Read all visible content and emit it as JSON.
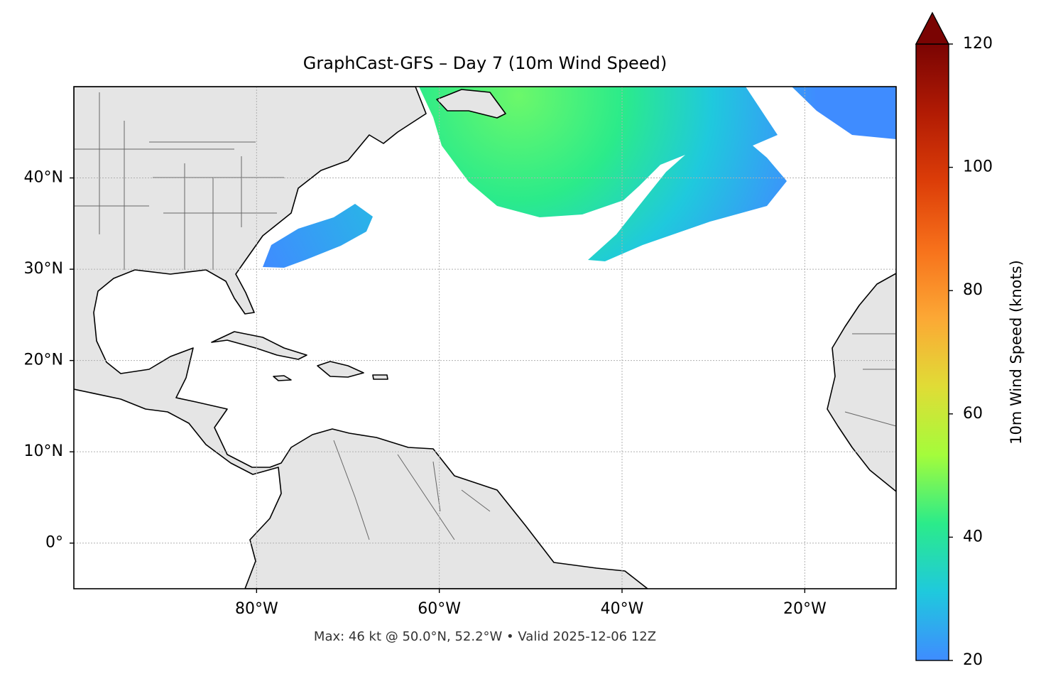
{
  "chart_data": {
    "type": "map",
    "title": "GraphCast-GFS – Day 7 (10m Wind Speed)",
    "annotation": "Max: 46 kt @ 50.0°N, 52.2°W • Valid 2025-12-06 12Z",
    "xlim": [
      -100,
      -10
    ],
    "ylim": [
      -5,
      50
    ],
    "xticks": [
      {
        "value": -80,
        "label": "80°W"
      },
      {
        "value": -60,
        "label": "60°W"
      },
      {
        "value": -40,
        "label": "40°W"
      },
      {
        "value": -20,
        "label": "20°W"
      }
    ],
    "yticks": [
      {
        "value": 0,
        "label": "0°"
      },
      {
        "value": 10,
        "label": "10°N"
      },
      {
        "value": 20,
        "label": "20°N"
      },
      {
        "value": 30,
        "label": "30°N"
      },
      {
        "value": 40,
        "label": "40°N"
      }
    ],
    "grid": true,
    "colorbar": {
      "label": "10m Wind Speed (knots)",
      "lim": [
        20,
        120
      ],
      "ticks": [
        20,
        40,
        60,
        80,
        100,
        120
      ],
      "extend": "max",
      "colors": [
        "#3f8cff",
        "#1fc9dd",
        "#2beb8a",
        "#a4fc3b",
        "#e0dc36",
        "#fca835",
        "#f7711b",
        "#dc3d08",
        "#b11b04",
        "#7a0403"
      ]
    }
  }
}
